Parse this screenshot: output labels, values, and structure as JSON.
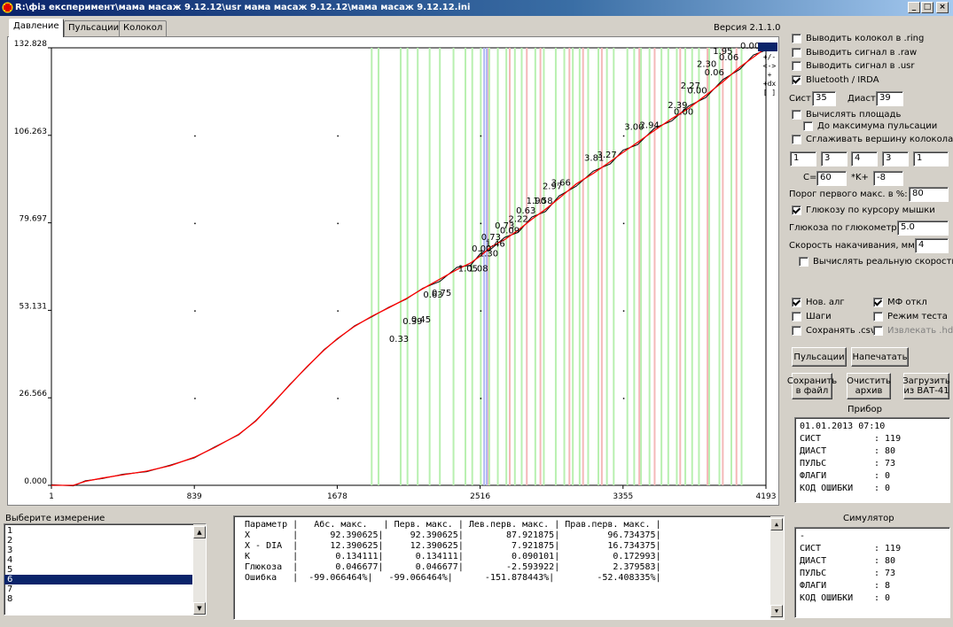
{
  "window": {
    "title": "R:\\фіз експеримент\\мама масаж 9.12.12\\usr  мама масаж 9.12.12\\мама масаж 9.12.12.ini",
    "minimize": "_",
    "maximize": "□",
    "close": "×"
  },
  "tabs": [
    {
      "label": "Давление",
      "active": true
    },
    {
      "label": "Пульсации",
      "active": false
    },
    {
      "label": "Колокол",
      "active": false
    }
  ],
  "version": "Версия 2.1.1.0",
  "plot_tools": [
    "+/-",
    "<->",
    "+",
    "+dx",
    "[ ]"
  ],
  "chart_data": {
    "type": "line",
    "x_ticks": [
      "1",
      "839",
      "1678",
      "2516",
      "3355",
      "4193"
    ],
    "y_ticks": [
      "0.000",
      "26.566",
      "53.131",
      "79.697",
      "106.263",
      "132.828"
    ],
    "xlim": [
      1,
      4193
    ],
    "ylim": [
      0,
      132.828
    ],
    "grid": false,
    "series": [
      {
        "color": "#ff0000",
        "x": [
          1,
          130,
          200,
          300,
          420,
          560,
          700,
          839,
          960,
          1100,
          1200,
          1300,
          1400,
          1500,
          1600,
          1678,
          1780,
          1880,
          1980,
          2080,
          2180,
          2280,
          2380,
          2460,
          2516,
          2580,
          2660,
          2740,
          2820,
          2900,
          2980,
          3080,
          3180,
          3280,
          3355,
          3440,
          3540,
          3640,
          3740,
          3840,
          3940,
          4040,
          4120,
          4193
        ],
        "y": [
          0,
          0,
          1.2,
          2.2,
          3.2,
          4.3,
          6,
          8.5,
          11.5,
          15.5,
          19.5,
          25,
          30.5,
          36,
          41,
          44.5,
          48.3,
          51.3,
          53.9,
          56.6,
          59.7,
          62.6,
          65.5,
          67.5,
          69.6,
          72.4,
          74.6,
          77.5,
          80.8,
          83.8,
          87.2,
          91.5,
          94.7,
          98.3,
          101.1,
          104.1,
          107.8,
          111.3,
          114.5,
          118.4,
          122.5,
          127,
          130,
          132.8
        ]
      }
    ],
    "annotations": [
      {
        "x": 2040,
        "y": 43.5,
        "text": "0.33"
      },
      {
        "x": 2120,
        "y": 49,
        "text": "0.39"
      },
      {
        "x": 2170,
        "y": 49.5,
        "text": "0.45"
      },
      {
        "x": 2240,
        "y": 57,
        "text": "0.63"
      },
      {
        "x": 2290,
        "y": 57.5,
        "text": "0.75"
      },
      {
        "x": 2445,
        "y": 65,
        "text": "1.05"
      },
      {
        "x": 2505,
        "y": 65,
        "text": "1.08"
      },
      {
        "x": 2525,
        "y": 71,
        "text": "0.00"
      },
      {
        "x": 2565,
        "y": 69.5,
        "text": "1.30"
      },
      {
        "x": 2580,
        "y": 74.5,
        "text": "0.73"
      },
      {
        "x": 2605,
        "y": 72.5,
        "text": "1.46"
      },
      {
        "x": 2660,
        "y": 78,
        "text": "0.73"
      },
      {
        "x": 2690,
        "y": 76.5,
        "text": "0.09"
      },
      {
        "x": 2740,
        "y": 80,
        "text": "2.22"
      },
      {
        "x": 2785,
        "y": 82.5,
        "text": "0.63"
      },
      {
        "x": 2845,
        "y": 85.5,
        "text": "1.90"
      },
      {
        "x": 2885,
        "y": 85.5,
        "text": "1.58"
      },
      {
        "x": 2940,
        "y": 90,
        "text": "2.97"
      },
      {
        "x": 2990,
        "y": 91,
        "text": "3.66"
      },
      {
        "x": 3185,
        "y": 98.5,
        "text": "3.81"
      },
      {
        "x": 3260,
        "y": 99.5,
        "text": "3.27"
      },
      {
        "x": 3420,
        "y": 108,
        "text": "3.00"
      },
      {
        "x": 3510,
        "y": 108.5,
        "text": "2.94"
      },
      {
        "x": 3675,
        "y": 114.5,
        "text": "2.39"
      },
      {
        "x": 3710,
        "y": 112.5,
        "text": "0.00"
      },
      {
        "x": 3750,
        "y": 120.5,
        "text": "2.27"
      },
      {
        "x": 3790,
        "y": 119,
        "text": "0.00"
      },
      {
        "x": 3845,
        "y": 127,
        "text": "2.30"
      },
      {
        "x": 3890,
        "y": 124.5,
        "text": "0.06"
      },
      {
        "x": 3940,
        "y": 131,
        "text": "1.95"
      },
      {
        "x": 3975,
        "y": 129,
        "text": "0.06"
      },
      {
        "x": 4100,
        "y": 132.5,
        "text": "0.00"
      }
    ],
    "green_lines": [
      1880,
      1920,
      2050,
      2090,
      2150,
      2220,
      2280,
      2360,
      2430,
      2470,
      2520,
      2570,
      2620,
      2670,
      2720,
      2760,
      2840,
      2890,
      2960,
      3010,
      3060,
      3100,
      3150,
      3210,
      3260,
      3300,
      3380,
      3420,
      3460,
      3510,
      3580,
      3620,
      3670,
      3720,
      3760,
      3800,
      3860,
      3920,
      3990,
      4050
    ],
    "red_lines": [
      2560,
      2690,
      2790,
      2870,
      3040,
      3120,
      3230,
      3450,
      3540,
      3690,
      3850,
      3940,
      4020
    ],
    "blue_lines": [
      2540,
      2555
    ]
  },
  "options": {
    "out_ring": {
      "label": "Выводить колокол в .ring",
      "checked": false
    },
    "out_raw": {
      "label": "Выводить сигнал в .raw",
      "checked": false
    },
    "out_usr": {
      "label": "Выводить сигнал в .usr",
      "checked": false
    },
    "bluetooth": {
      "label": "Bluetooth / IRDA",
      "checked": true
    },
    "sist_label": "Сист",
    "sist_value": "35",
    "diast_label": "Диаст",
    "diast_value": "39",
    "calc_area": {
      "label": "Вычислять площадь",
      "checked": false
    },
    "to_max": {
      "label": "До максимума пульсации",
      "checked": false
    },
    "smooth_top": {
      "label": "Сглаживать вершину колокола",
      "checked": false
    },
    "params": [
      "1",
      "3",
      "4",
      "3",
      "1"
    ],
    "c_label": "C=",
    "c_value": "60",
    "k_label": "*K+",
    "k_value": "-8",
    "threshold_label": "Порог первого макс. в %:",
    "threshold_value": "80",
    "glucose_cursor": {
      "label": "Глюкозу по курсору мышки",
      "checked": true
    },
    "glucometer_label": "Глюкоза по глюкометру:",
    "glucometer_value": "5.0",
    "speed_label": "Скорость накачивания, мм/с",
    "speed_value": "4",
    "real_speed": {
      "label": "Вычислять реальную скорость",
      "checked": false
    },
    "new_alg": {
      "label": "Нов. алг",
      "checked": true
    },
    "mf_off": {
      "label": "МФ откл",
      "checked": true
    },
    "steps": {
      "label": "Шаги",
      "checked": false
    },
    "test_mode": {
      "label": "Режим теста",
      "checked": false
    },
    "save_csv": {
      "label": "Сохранять .csv",
      "checked": false
    },
    "extract_hds": {
      "label": "Извлекать .hds",
      "checked": false
    }
  },
  "buttons": {
    "pulsations": "Пульсации",
    "print": "Напечатать",
    "save_file": "Сохранить\nв файл",
    "clear_archive": "Очистить\nархив",
    "load_bat": "Загрузить\nиз ВАТ-41"
  },
  "device": {
    "title": "Прибор",
    "datetime": "01.01.2013 07:10",
    "rows": [
      {
        "k": "СИСТ",
        "v": ": 119"
      },
      {
        "k": "ДИАСТ",
        "v": ": 80"
      },
      {
        "k": "ПУЛЬС",
        "v": ": 73"
      },
      {
        "k": "ФЛАГИ",
        "v": ": 0"
      },
      {
        "k": "КОД ОШИБКИ",
        "v": ": 0"
      }
    ]
  },
  "simulator": {
    "title": "Симулятор",
    "first_line": "-",
    "rows": [
      {
        "k": "СИСТ",
        "v": ": 119"
      },
      {
        "k": "ДИАСТ",
        "v": ": 80"
      },
      {
        "k": "ПУЛЬС",
        "v": ": 73"
      },
      {
        "k": "ФЛАГИ",
        "v": ": 8"
      },
      {
        "k": "КОД ОШИБКИ",
        "v": ": 0"
      }
    ]
  },
  "measurements": {
    "title": "Выберите измерение",
    "items": [
      "1",
      "2",
      "3",
      "4",
      "5",
      "6",
      "7",
      "8"
    ],
    "selected": "6"
  },
  "results_table": {
    "rows": [
      "Параметр |   Абс. макс.   | Перв. макс. | Лев.перв. макс. | Прав.перв. макс. |",
      "X        |      92.390625|     92.390625|        87.921875|         96.734375|",
      "X - DIA  |      12.390625|     12.390625|         7.921875|         16.734375|",
      "K        |       0.134111|      0.134111|         0.090101|          0.172993|",
      "Глюкоза  |       0.046677|      0.046677|        -2.593922|          2.379583|",
      "Ошибка   |  -99.066464%|   -99.066464%|      -151.878443%|        -52.408335%|"
    ]
  }
}
